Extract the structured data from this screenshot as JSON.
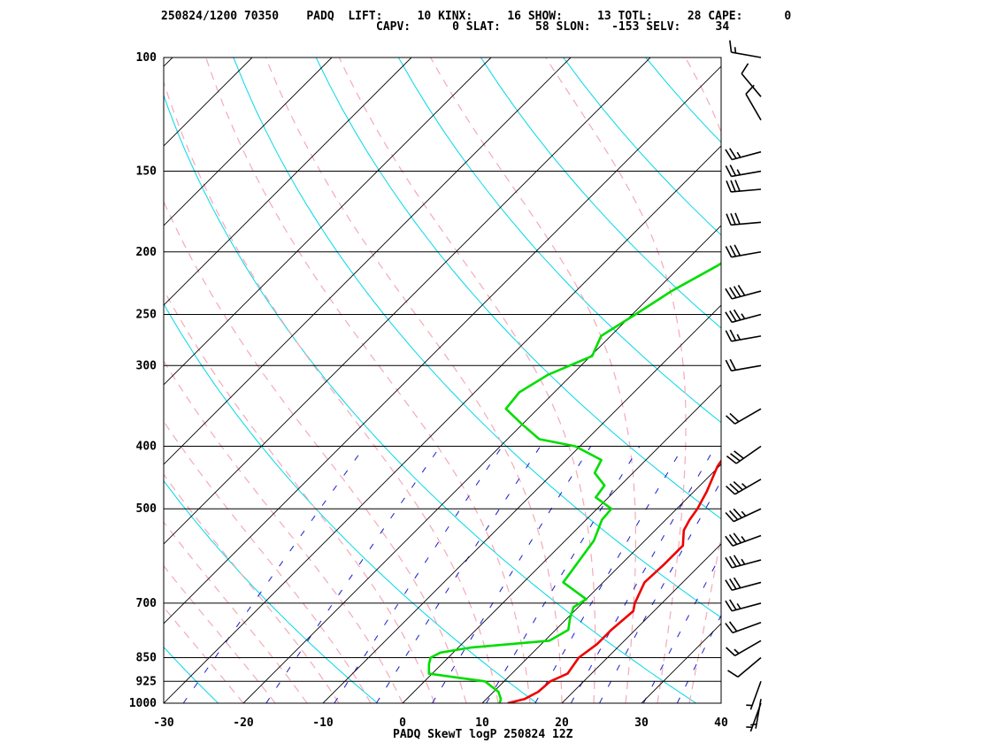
{
  "header": {
    "line1": "250824/1200 70350    PADQ  LIFT:     10 KINX:     16 SHOW:     13 TOTL:     28 CAPE:      0",
    "line2": "CAPV:      0 SLAT:     58 SLON:   -153 SELV:     34"
  },
  "chart_data": {
    "type": "line",
    "title": "PADQ SkewT logP 250824 12Z",
    "xlabel": "",
    "ylabel": "",
    "xlim": [
      -30,
      40
    ],
    "plim": [
      1000,
      100
    ],
    "log_pressure": true,
    "pressure_ticks": [
      100,
      150,
      200,
      250,
      300,
      400,
      500,
      700,
      850,
      925,
      1000
    ],
    "temp_ticks": [
      -30,
      -20,
      -10,
      0,
      10,
      20,
      30,
      40
    ],
    "grid": true,
    "series": [
      {
        "color": "#ee0000",
        "points": [
          [
            1000,
            13.2
          ],
          [
            985,
            14.8
          ],
          [
            960,
            15.6
          ],
          [
            925,
            15.8
          ],
          [
            900,
            17.0
          ],
          [
            850,
            16.4
          ],
          [
            810,
            17.0
          ],
          [
            770,
            17.0
          ],
          [
            720,
            17.4
          ],
          [
            700,
            16.6
          ],
          [
            650,
            15.2
          ],
          [
            610,
            15.4
          ],
          [
            570,
            15.4
          ],
          [
            540,
            13.6
          ],
          [
            520,
            13.0
          ],
          [
            500,
            12.6
          ],
          [
            470,
            11.6
          ],
          [
            430,
            9.8
          ],
          [
            400,
            9.0
          ],
          [
            380,
            8.8
          ],
          [
            350,
            8.4
          ],
          [
            320,
            7.6
          ],
          [
            290,
            6.8
          ],
          [
            260,
            6.4
          ],
          [
            230,
            5.8
          ],
          [
            210,
            5.4
          ],
          [
            195,
            5.0
          ],
          [
            180,
            6.2
          ],
          [
            170,
            5.6
          ],
          [
            155,
            8.4
          ],
          [
            150,
            7.6
          ],
          [
            140,
            10.4
          ],
          [
            125,
            12.0
          ],
          [
            110,
            15.2
          ],
          [
            100,
            18.8
          ]
        ]
      },
      {
        "color": "#00dd00",
        "points": [
          [
            1000,
            12.2
          ],
          [
            985,
            11.8
          ],
          [
            960,
            10.6
          ],
          [
            925,
            7.6
          ],
          [
            900,
            -0.4
          ],
          [
            870,
            -1.6
          ],
          [
            850,
            -2.2
          ],
          [
            835,
            -1.6
          ],
          [
            820,
            1.6
          ],
          [
            800,
            10.6
          ],
          [
            770,
            11.6
          ],
          [
            740,
            10.4
          ],
          [
            710,
            9.4
          ],
          [
            690,
            10.0
          ],
          [
            650,
            5.0
          ],
          [
            610,
            4.4
          ],
          [
            560,
            3.6
          ],
          [
            520,
            2.0
          ],
          [
            500,
            1.8
          ],
          [
            480,
            -1.6
          ],
          [
            460,
            -2.0
          ],
          [
            440,
            -4.8
          ],
          [
            420,
            -5.6
          ],
          [
            400,
            -10.6
          ],
          [
            390,
            -16.0
          ],
          [
            370,
            -20.0
          ],
          [
            350,
            -24.0
          ],
          [
            330,
            -24.4
          ],
          [
            310,
            -23.0
          ],
          [
            290,
            -19.8
          ],
          [
            270,
            -21.2
          ],
          [
            250,
            -19.6
          ],
          [
            230,
            -18.0
          ],
          [
            210,
            -15.4
          ],
          [
            195,
            -14.0
          ],
          [
            180,
            -14.6
          ],
          [
            170,
            -19.8
          ],
          [
            150,
            -22.4
          ],
          [
            140,
            -24.0
          ],
          [
            125,
            -24.0
          ],
          [
            110,
            -25.4
          ],
          [
            100,
            -27.0
          ]
        ]
      }
    ],
    "wind_barbs": [
      {
        "p": 1000,
        "dir": 200,
        "spd": 5
      },
      {
        "p": 985,
        "dir": 190,
        "spd": 5
      },
      {
        "p": 925,
        "dir": 200,
        "spd": 5
      },
      {
        "p": 850,
        "dir": 230,
        "spd": 10
      },
      {
        "p": 800,
        "dir": 240,
        "spd": 15
      },
      {
        "p": 750,
        "dir": 250,
        "spd": 20
      },
      {
        "p": 700,
        "dir": 255,
        "spd": 25
      },
      {
        "p": 650,
        "dir": 255,
        "spd": 30
      },
      {
        "p": 600,
        "dir": 255,
        "spd": 35
      },
      {
        "p": 550,
        "dir": 250,
        "spd": 35
      },
      {
        "p": 500,
        "dir": 245,
        "spd": 35
      },
      {
        "p": 450,
        "dir": 240,
        "spd": 35
      },
      {
        "p": 400,
        "dir": 235,
        "spd": 30
      },
      {
        "p": 350,
        "dir": 240,
        "spd": 20
      },
      {
        "p": 300,
        "dir": 260,
        "spd": 20
      },
      {
        "p": 270,
        "dir": 260,
        "spd": 25
      },
      {
        "p": 250,
        "dir": 255,
        "spd": 35
      },
      {
        "p": 230,
        "dir": 255,
        "spd": 40
      },
      {
        "p": 200,
        "dir": 260,
        "spd": 30
      },
      {
        "p": 180,
        "dir": 265,
        "spd": 30
      },
      {
        "p": 160,
        "dir": 265,
        "spd": 30
      },
      {
        "p": 150,
        "dir": 260,
        "spd": 25
      },
      {
        "p": 140,
        "dir": 255,
        "spd": 25
      },
      {
        "p": 125,
        "dir": 330,
        "spd": 10
      },
      {
        "p": 115,
        "dir": 320,
        "spd": 10
      },
      {
        "p": 100,
        "dir": 280,
        "spd": 15
      }
    ]
  }
}
